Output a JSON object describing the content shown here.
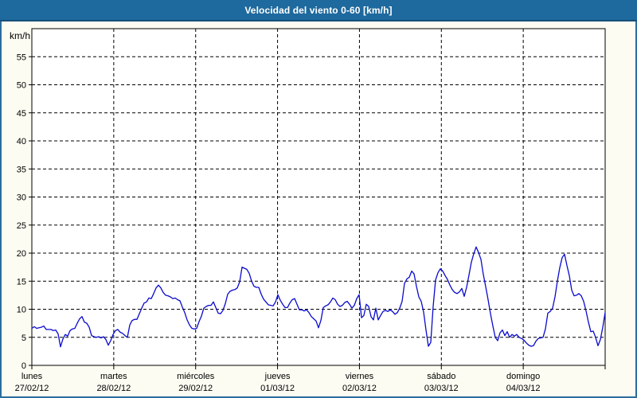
{
  "frame": {
    "background_color": "#fcfcf2",
    "border_color": "#2d6d9e"
  },
  "title_bar": {
    "text": "Velocidad del viento 0-60 [km/h]",
    "background_color": "#1e699d",
    "edge_color": "#174f79",
    "text_color": "#ffffff"
  },
  "chart_data": {
    "type": "line",
    "title": "Velocidad del viento 0-60 [km/h]",
    "ylabel": "km/h",
    "xlabel": "",
    "ylim": [
      0,
      60
    ],
    "yticks": [
      0,
      5,
      10,
      15,
      20,
      25,
      30,
      35,
      40,
      45,
      50,
      55
    ],
    "grid": true,
    "grid_style": "dashed",
    "legend": false,
    "plot_background": "#ffffff",
    "grid_color": "#000000",
    "days": [
      {
        "name": "lunes",
        "date": "27/02/12"
      },
      {
        "name": "martes",
        "date": "28/02/12"
      },
      {
        "name": "miércoles",
        "date": "29/02/12"
      },
      {
        "name": "jueves",
        "date": "01/03/12"
      },
      {
        "name": "viernes",
        "date": "02/03/12"
      },
      {
        "name": "sábado",
        "date": "03/03/12"
      },
      {
        "name": "domingo",
        "date": "04/03/12"
      }
    ],
    "series": [
      {
        "name": "velocidad del viento",
        "color": "#0a0acd",
        "unit": "km/h",
        "values": [
          6.6,
          6.9,
          6.6,
          6.7,
          6.8,
          7.0,
          6.4,
          6.4,
          6.4,
          6.2,
          6.3,
          5.6,
          3.3,
          4.7,
          5.5,
          5.2,
          6.2,
          6.5,
          6.6,
          7.5,
          8.3,
          8.7,
          7.7,
          7.5,
          6.8,
          5.3,
          5.1,
          5.0,
          5.1,
          4.9,
          5.1,
          4.6,
          3.6,
          4.4,
          5.5,
          6.2,
          6.4,
          5.9,
          5.7,
          5.3,
          5.0,
          7.2,
          8.0,
          8.2,
          8.2,
          9.2,
          10.2,
          11.1,
          11.3,
          12.0,
          11.9,
          12.8,
          13.8,
          14.3,
          13.8,
          13.0,
          12.5,
          12.4,
          12.2,
          11.9,
          12.0,
          11.7,
          11.5,
          10.4,
          9.4,
          8.1,
          7.2,
          6.6,
          6.5,
          6.6,
          7.8,
          8.8,
          10.2,
          10.5,
          10.7,
          10.7,
          11.3,
          10.3,
          9.3,
          9.2,
          9.8,
          11.0,
          12.7,
          13.2,
          13.4,
          13.5,
          13.8,
          14.9,
          17.5,
          17.3,
          17.1,
          16.4,
          15.0,
          14.1,
          13.9,
          13.9,
          12.7,
          11.8,
          11.3,
          10.8,
          10.7,
          10.6,
          11.3,
          12.6,
          11.6,
          10.9,
          10.3,
          10.3,
          11.1,
          11.7,
          11.9,
          10.9,
          9.9,
          9.9,
          9.7,
          9.9,
          9.4,
          8.7,
          8.3,
          7.9,
          6.7,
          8.0,
          10.3,
          10.6,
          10.8,
          11.3,
          12.0,
          11.7,
          10.9,
          10.5,
          10.7,
          11.2,
          11.4,
          10.9,
          10.2,
          10.7,
          11.9,
          12.6,
          8.5,
          8.9,
          10.9,
          10.5,
          8.7,
          8.1,
          10.2,
          8.1,
          8.9,
          9.6,
          9.8,
          9.6,
          9.9,
          9.6,
          9.1,
          9.4,
          10.2,
          11.4,
          14.6,
          15.4,
          15.7,
          16.8,
          16.3,
          14.1,
          12.2,
          11.4,
          9.5,
          6.3,
          3.4,
          4.1,
          10.5,
          15.2,
          16.5,
          17.2,
          16.8,
          16.0,
          15.3,
          14.3,
          13.5,
          13.0,
          12.8,
          13.1,
          13.7,
          12.3,
          13.9,
          16.1,
          18.4,
          19.9,
          21.1,
          20.1,
          18.9,
          16.2,
          14.0,
          11.7,
          9.2,
          7.0,
          5.0,
          4.4,
          5.8,
          6.3,
          5.3,
          6.0,
          5.0,
          5.5,
          5.2,
          5.5,
          5.0,
          4.8,
          4.5,
          4.0,
          3.6,
          3.4,
          3.5,
          4.3,
          4.8,
          4.9,
          5.0,
          6.5,
          9.3,
          9.6,
          10.2,
          12.2,
          15.0,
          17.4,
          19.2,
          19.8,
          17.8,
          16.0,
          13.4,
          12.4,
          12.5,
          12.8,
          12.4,
          11.4,
          9.7,
          7.7,
          6.0,
          6.1,
          5.0,
          3.5,
          4.6,
          6.8,
          9.4
        ]
      }
    ]
  }
}
